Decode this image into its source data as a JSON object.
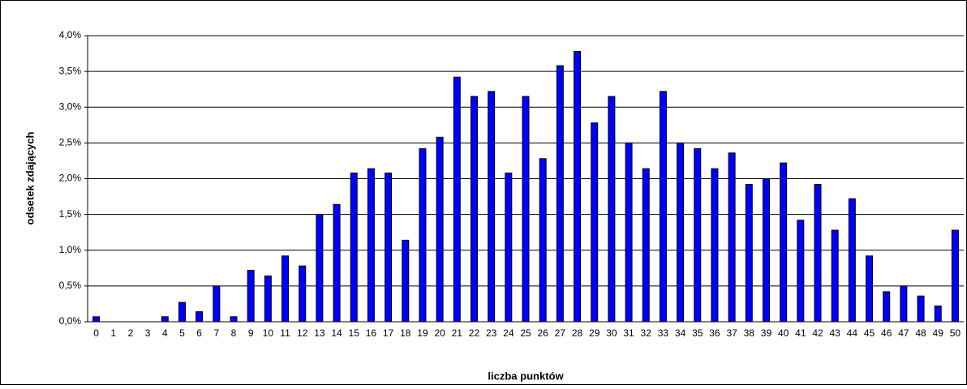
{
  "chart_data": {
    "type": "bar",
    "x_label": "liczba punktów",
    "y_label": "odsetek zdających",
    "categories": [
      "0",
      "1",
      "2",
      "3",
      "4",
      "5",
      "6",
      "7",
      "8",
      "9",
      "10",
      "11",
      "12",
      "13",
      "14",
      "15",
      "16",
      "17",
      "18",
      "19",
      "20",
      "21",
      "22",
      "23",
      "24",
      "25",
      "26",
      "27",
      "28",
      "29",
      "30",
      "31",
      "32",
      "33",
      "34",
      "35",
      "36",
      "37",
      "38",
      "39",
      "40",
      "41",
      "42",
      "43",
      "44",
      "45",
      "46",
      "47",
      "48",
      "49",
      "50"
    ],
    "values": [
      0.07,
      0,
      0,
      0,
      0.07,
      0.27,
      0.14,
      0.5,
      0.07,
      0.72,
      0.64,
      0.92,
      0.78,
      1.5,
      1.64,
      2.08,
      2.14,
      2.08,
      1.14,
      2.42,
      2.58,
      3.42,
      3.15,
      3.22,
      2.08,
      3.15,
      2.28,
      3.58,
      3.78,
      2.78,
      3.15,
      2.5,
      2.14,
      3.22,
      2.5,
      2.42,
      2.14,
      2.36,
      1.92,
      2.0,
      2.22,
      1.42,
      1.92,
      1.28,
      1.72,
      0.92,
      0.42,
      0.5,
      0.36,
      0.22,
      1.28
    ],
    "color": "#0000ff",
    "ylim": [
      0,
      4
    ],
    "yticks": [
      {
        "value": 0,
        "label": "0,0%"
      },
      {
        "value": 0.5,
        "label": "0,5%"
      },
      {
        "value": 1,
        "label": "1,0%"
      },
      {
        "value": 1.5,
        "label": "1,5%"
      },
      {
        "value": 2,
        "label": "2,0%"
      },
      {
        "value": 2.5,
        "label": "2,5%"
      },
      {
        "value": 3,
        "label": "3,0%"
      },
      {
        "value": 3.5,
        "label": "3,5%"
      },
      {
        "value": 4,
        "label": "4,0%"
      }
    ],
    "grid": true
  }
}
